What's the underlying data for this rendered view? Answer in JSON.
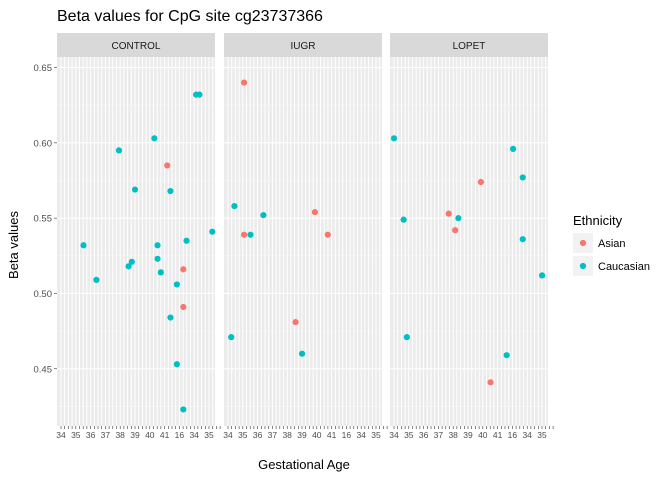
{
  "chart_data": {
    "type": "scatter",
    "title": "Beta values for CpG site cg23737366",
    "xlabel": "Gestational Age",
    "ylabel": "Beta values",
    "ylim": [
      0.412,
      0.657
    ],
    "y_ticks": [
      0.45,
      0.5,
      0.55,
      0.6,
      0.65
    ],
    "y_tick_labels": [
      "0.45",
      "0.50",
      "0.55",
      "0.60",
      "0.65"
    ],
    "x_tick_labels": [
      "34",
      "35",
      "36",
      "37",
      "38",
      "39",
      "40",
      "41",
      "16"
    ],
    "x_tick_count": 44,
    "grid": true,
    "facets": [
      "CONTROL",
      "IUGR",
      "LOPET"
    ],
    "legend": {
      "title": "Ethnicity",
      "position": "right",
      "entries": [
        {
          "label": "Asian",
          "color": "#F8766D"
        },
        {
          "label": "Caucasian",
          "color": "#00BFC4"
        }
      ]
    },
    "series": [
      {
        "name": "Asian",
        "color": "#F8766D",
        "points": [
          {
            "facet": "CONTROL",
            "x": 34,
            "y": 0.585
          },
          {
            "facet": "CONTROL",
            "x": 39,
            "y": 0.516
          },
          {
            "facet": "CONTROL",
            "x": 39,
            "y": 0.491
          },
          {
            "facet": "IUGR",
            "x": 6,
            "y": 0.64
          },
          {
            "facet": "IUGR",
            "x": 6,
            "y": 0.539
          },
          {
            "facet": "IUGR",
            "x": 22,
            "y": 0.481
          },
          {
            "facet": "IUGR",
            "x": 28,
            "y": 0.554
          },
          {
            "facet": "IUGR",
            "x": 32,
            "y": 0.539
          },
          {
            "facet": "LOPET",
            "x": 18,
            "y": 0.553
          },
          {
            "facet": "LOPET",
            "x": 20,
            "y": 0.542
          },
          {
            "facet": "LOPET",
            "x": 28,
            "y": 0.574
          },
          {
            "facet": "LOPET",
            "x": 31,
            "y": 0.441
          }
        ]
      },
      {
        "name": "Caucasian",
        "color": "#00BFC4",
        "points": [
          {
            "facet": "CONTROL",
            "x": 8,
            "y": 0.532
          },
          {
            "facet": "CONTROL",
            "x": 12,
            "y": 0.509
          },
          {
            "facet": "CONTROL",
            "x": 19,
            "y": 0.595
          },
          {
            "facet": "CONTROL",
            "x": 22,
            "y": 0.518
          },
          {
            "facet": "CONTROL",
            "x": 23,
            "y": 0.521
          },
          {
            "facet": "CONTROL",
            "x": 24,
            "y": 0.569
          },
          {
            "facet": "CONTROL",
            "x": 30,
            "y": 0.603
          },
          {
            "facet": "CONTROL",
            "x": 31,
            "y": 0.532
          },
          {
            "facet": "CONTROL",
            "x": 31,
            "y": 0.523
          },
          {
            "facet": "CONTROL",
            "x": 32,
            "y": 0.514
          },
          {
            "facet": "CONTROL",
            "x": 35,
            "y": 0.568
          },
          {
            "facet": "CONTROL",
            "x": 35,
            "y": 0.484
          },
          {
            "facet": "CONTROL",
            "x": 37,
            "y": 0.506
          },
          {
            "facet": "CONTROL",
            "x": 37,
            "y": 0.453
          },
          {
            "facet": "CONTROL",
            "x": 39,
            "y": 0.423
          },
          {
            "facet": "CONTROL",
            "x": 40,
            "y": 0.535
          },
          {
            "facet": "CONTROL",
            "x": 43,
            "y": 0.632
          },
          {
            "facet": "CONTROL",
            "x": 44,
            "y": 0.632
          },
          {
            "facet": "CONTROL",
            "x": 48,
            "y": 0.541
          },
          {
            "facet": "IUGR",
            "x": 2,
            "y": 0.471
          },
          {
            "facet": "IUGR",
            "x": 3,
            "y": 0.558
          },
          {
            "facet": "IUGR",
            "x": 8,
            "y": 0.539
          },
          {
            "facet": "IUGR",
            "x": 12,
            "y": 0.552
          },
          {
            "facet": "IUGR",
            "x": 24,
            "y": 0.46
          },
          {
            "facet": "LOPET",
            "x": 1,
            "y": 0.603
          },
          {
            "facet": "LOPET",
            "x": 4,
            "y": 0.549
          },
          {
            "facet": "LOPET",
            "x": 5,
            "y": 0.471
          },
          {
            "facet": "LOPET",
            "x": 21,
            "y": 0.55
          },
          {
            "facet": "LOPET",
            "x": 36,
            "y": 0.459
          },
          {
            "facet": "LOPET",
            "x": 38,
            "y": 0.596
          },
          {
            "facet": "LOPET",
            "x": 41,
            "y": 0.577
          },
          {
            "facet": "LOPET",
            "x": 41,
            "y": 0.536
          },
          {
            "facet": "LOPET",
            "x": 47,
            "y": 0.512
          }
        ]
      }
    ]
  }
}
